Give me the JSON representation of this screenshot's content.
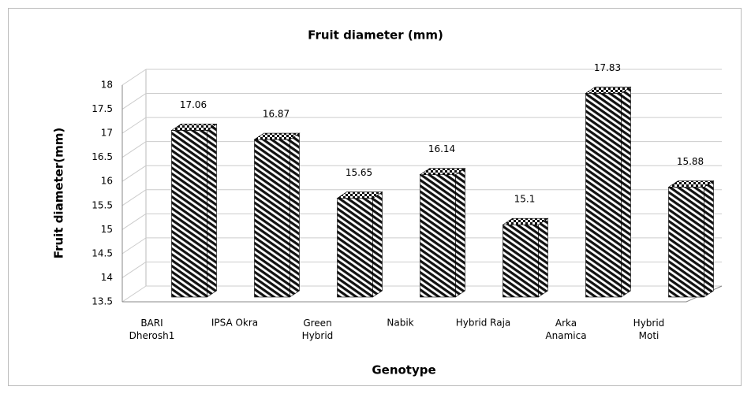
{
  "chart_data": {
    "type": "bar3d",
    "title": "Fruit diameter (mm)",
    "x_label": "Genotype",
    "y_label": "Fruit diameter(mm)",
    "categories": [
      "BARI\nDherosh1",
      "IPSA Okra",
      "Green\nHybrid",
      "Nabik",
      "Hybrid Raja",
      "Arka\nAnamica",
      "Hybrid\nMoti"
    ],
    "values": [
      17.06,
      16.87,
      15.65,
      16.14,
      15.1,
      17.83,
      15.88
    ],
    "ylim": [
      13.5,
      18
    ],
    "yticks": [
      13.5,
      14,
      14.5,
      15,
      15.5,
      16,
      16.5,
      17,
      17.5,
      18
    ],
    "grid": true,
    "color": "#000000"
  }
}
